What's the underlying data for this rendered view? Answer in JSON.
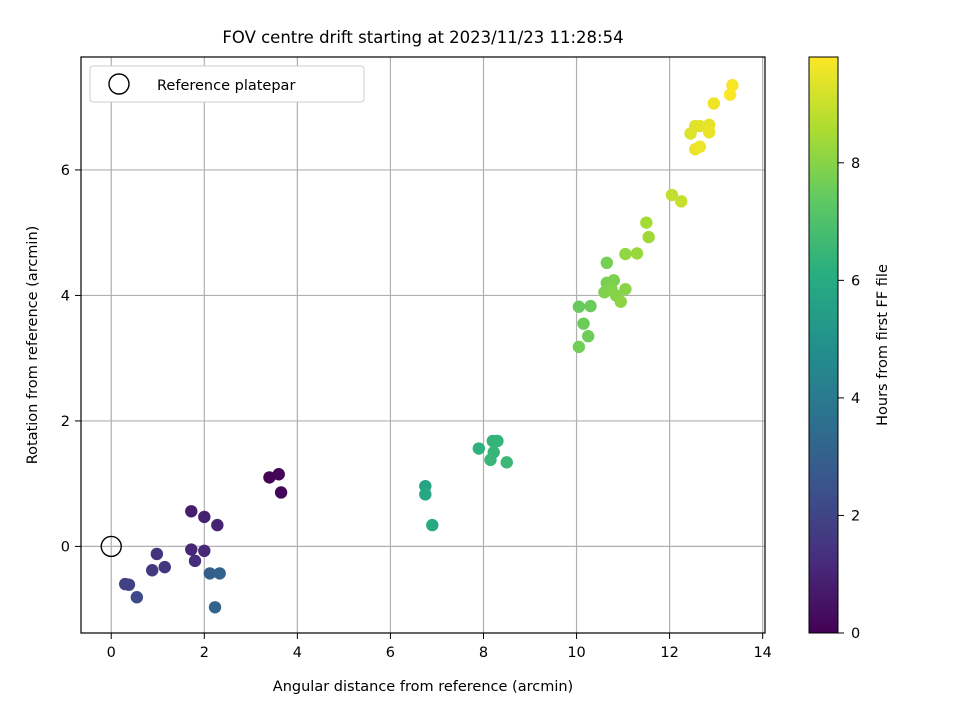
{
  "chart_data": {
    "type": "scatter",
    "title": "FOV centre drift starting at 2023/11/23 11:28:54",
    "xlabel": "Angular distance from reference (arcmin)",
    "ylabel": "Rotation from reference (arcmin)",
    "xlim": [
      -0.65,
      14.05
    ],
    "ylim": [
      -1.38,
      7.8
    ],
    "xticks": [
      0,
      2,
      4,
      6,
      8,
      10,
      12,
      14
    ],
    "yticks": [
      0,
      2,
      4,
      6
    ],
    "grid": true,
    "legend": {
      "placement": "top-left",
      "entries": [
        "Reference platepar"
      ]
    },
    "reference_point": {
      "x": 0,
      "y": 0,
      "label": "Reference platepar"
    },
    "colorbar": {
      "label": "Hours from first FF file",
      "min": 0,
      "max": 9.8,
      "ticks": [
        0,
        2,
        4,
        6,
        8
      ],
      "colormap": "viridis"
    },
    "points": [
      {
        "x": 3.4,
        "y": 1.1,
        "t": 0.1
      },
      {
        "x": 3.6,
        "y": 1.15,
        "t": 0.15
      },
      {
        "x": 3.65,
        "y": 0.86,
        "t": 0.2
      },
      {
        "x": 1.72,
        "y": 0.56,
        "t": 0.8
      },
      {
        "x": 2.0,
        "y": 0.47,
        "t": 0.9
      },
      {
        "x": 2.28,
        "y": 0.34,
        "t": 1.0
      },
      {
        "x": 1.72,
        "y": -0.05,
        "t": 1.1
      },
      {
        "x": 2.0,
        "y": -0.07,
        "t": 1.2
      },
      {
        "x": 1.8,
        "y": -0.23,
        "t": 1.3
      },
      {
        "x": 0.98,
        "y": -0.12,
        "t": 1.5
      },
      {
        "x": 1.15,
        "y": -0.33,
        "t": 1.6
      },
      {
        "x": 0.88,
        "y": -0.38,
        "t": 1.7
      },
      {
        "x": 0.3,
        "y": -0.6,
        "t": 1.9
      },
      {
        "x": 0.38,
        "y": -0.61,
        "t": 2.0
      },
      {
        "x": 0.55,
        "y": -0.81,
        "t": 2.2
      },
      {
        "x": 2.12,
        "y": -0.43,
        "t": 3.0
      },
      {
        "x": 2.33,
        "y": -0.43,
        "t": 3.1
      },
      {
        "x": 2.23,
        "y": -0.97,
        "t": 3.2
      },
      {
        "x": 6.75,
        "y": 0.96,
        "t": 5.8
      },
      {
        "x": 6.75,
        "y": 0.83,
        "t": 5.9
      },
      {
        "x": 6.9,
        "y": 0.34,
        "t": 6.0
      },
      {
        "x": 7.9,
        "y": 1.56,
        "t": 6.3
      },
      {
        "x": 8.2,
        "y": 1.68,
        "t": 6.4
      },
      {
        "x": 8.3,
        "y": 1.68,
        "t": 6.45
      },
      {
        "x": 8.22,
        "y": 1.5,
        "t": 6.5
      },
      {
        "x": 8.15,
        "y": 1.38,
        "t": 6.55
      },
      {
        "x": 8.5,
        "y": 1.34,
        "t": 6.6
      },
      {
        "x": 10.05,
        "y": 3.82,
        "t": 7.5
      },
      {
        "x": 10.3,
        "y": 3.83,
        "t": 7.55
      },
      {
        "x": 10.15,
        "y": 3.55,
        "t": 7.6
      },
      {
        "x": 10.25,
        "y": 3.35,
        "t": 7.65
      },
      {
        "x": 10.05,
        "y": 3.18,
        "t": 7.7
      },
      {
        "x": 10.65,
        "y": 4.52,
        "t": 7.75
      },
      {
        "x": 10.65,
        "y": 4.2,
        "t": 7.8
      },
      {
        "x": 10.8,
        "y": 4.24,
        "t": 7.85
      },
      {
        "x": 10.6,
        "y": 4.05,
        "t": 7.9
      },
      {
        "x": 10.75,
        "y": 4.1,
        "t": 7.95
      },
      {
        "x": 10.85,
        "y": 4.0,
        "t": 8.0
      },
      {
        "x": 11.05,
        "y": 4.1,
        "t": 8.05
      },
      {
        "x": 10.95,
        "y": 3.9,
        "t": 8.1
      },
      {
        "x": 11.05,
        "y": 4.66,
        "t": 8.2
      },
      {
        "x": 11.3,
        "y": 4.67,
        "t": 8.3
      },
      {
        "x": 11.55,
        "y": 4.93,
        "t": 8.4
      },
      {
        "x": 11.5,
        "y": 5.16,
        "t": 8.5
      },
      {
        "x": 12.05,
        "y": 5.6,
        "t": 8.9
      },
      {
        "x": 12.25,
        "y": 5.5,
        "t": 9.0
      },
      {
        "x": 12.45,
        "y": 6.58,
        "t": 9.3
      },
      {
        "x": 12.55,
        "y": 6.7,
        "t": 9.35
      },
      {
        "x": 12.65,
        "y": 6.7,
        "t": 9.4
      },
      {
        "x": 12.85,
        "y": 6.72,
        "t": 9.45
      },
      {
        "x": 12.85,
        "y": 6.6,
        "t": 9.5
      },
      {
        "x": 12.55,
        "y": 6.33,
        "t": 9.5
      },
      {
        "x": 12.65,
        "y": 6.37,
        "t": 9.55
      },
      {
        "x": 12.95,
        "y": 7.06,
        "t": 9.6
      },
      {
        "x": 13.35,
        "y": 7.35,
        "t": 9.7
      },
      {
        "x": 13.3,
        "y": 7.2,
        "t": 9.75
      }
    ]
  }
}
